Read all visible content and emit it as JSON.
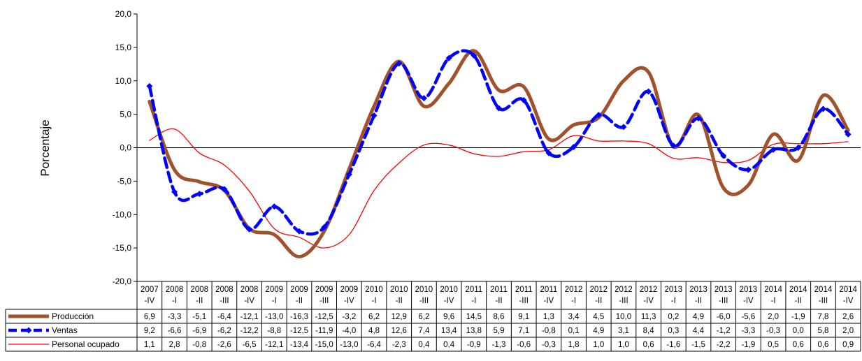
{
  "chart_data": {
    "type": "line",
    "ylabel": "Porcentaje",
    "ylim": [
      -20,
      20
    ],
    "yticks": [
      "20,0",
      "15,0",
      "10,0",
      "5,0",
      "0,0",
      "-5,0",
      "-10,0",
      "-15,0",
      "-20,0"
    ],
    "categories": [
      {
        "year": "2007",
        "q": "-IV"
      },
      {
        "year": "2008",
        "q": "-I"
      },
      {
        "year": "2008",
        "q": "-II"
      },
      {
        "year": "2008",
        "q": "-III"
      },
      {
        "year": "2008",
        "q": "-IV"
      },
      {
        "year": "2009",
        "q": "-I"
      },
      {
        "year": "2009",
        "q": "-II"
      },
      {
        "year": "2009",
        "q": "-III"
      },
      {
        "year": "2009",
        "q": "-IV"
      },
      {
        "year": "2010",
        "q": "-I"
      },
      {
        "year": "2010",
        "q": "-II"
      },
      {
        "year": "2010",
        "q": "-III"
      },
      {
        "year": "2010",
        "q": "-IV"
      },
      {
        "year": "2011",
        "q": "-I"
      },
      {
        "year": "2011",
        "q": "-II"
      },
      {
        "year": "2011",
        "q": "-III"
      },
      {
        "year": "2011",
        "q": "-IV"
      },
      {
        "year": "2012",
        "q": "-I"
      },
      {
        "year": "2012",
        "q": "-II"
      },
      {
        "year": "2012",
        "q": "-III"
      },
      {
        "year": "2012",
        "q": "-IV"
      },
      {
        "year": "2013",
        "q": "-I"
      },
      {
        "year": "2013",
        "q": "-II"
      },
      {
        "year": "2013",
        "q": "-III"
      },
      {
        "year": "2013",
        "q": "-IV"
      },
      {
        "year": "2014",
        "q": "-I"
      },
      {
        "year": "2014",
        "q": "-II"
      },
      {
        "year": "2014",
        "q": "-III"
      },
      {
        "year": "2014",
        "q": "-IV"
      }
    ],
    "series": [
      {
        "name": "Producción",
        "color": "#a0522d",
        "style": "thick-solid",
        "values": [
          6.9,
          -3.3,
          -5.1,
          -6.4,
          -12.1,
          -13.0,
          -16.3,
          -12.5,
          -3.2,
          6.2,
          12.9,
          6.2,
          9.6,
          14.5,
          8.6,
          9.1,
          1.3,
          3.4,
          4.5,
          10.0,
          11.3,
          0.2,
          4.9,
          -6.0,
          -5.6,
          2.0,
          -1.9,
          7.8,
          2.6
        ],
        "labels": [
          "6,9",
          "-3,3",
          "-5,1",
          "-6,4",
          "-12,1",
          "-13,0",
          "-16,3",
          "-12,5",
          "-3,2",
          "6,2",
          "12,9",
          "6,2",
          "9,6",
          "14,5",
          "8,6",
          "9,1",
          "1,3",
          "3,4",
          "4,5",
          "10,0",
          "11,3",
          "0,2",
          "4,9",
          "-6,0",
          "-5,6",
          "2,0",
          "-1,9",
          "7,8",
          "2,6"
        ]
      },
      {
        "name": "Ventas",
        "color": "#0000ff",
        "style": "dashed-diamond",
        "values": [
          9.2,
          -6.6,
          -6.9,
          -6.2,
          -12.2,
          -8.8,
          -12.5,
          -11.9,
          -4.0,
          4.8,
          12.6,
          7.4,
          13.4,
          13.8,
          5.9,
          7.1,
          -0.8,
          0.1,
          4.9,
          3.1,
          8.4,
          0.3,
          4.4,
          -1.2,
          -3.3,
          -0.3,
          0.0,
          5.8,
          2.0
        ],
        "labels": [
          "9,2",
          "-6,6",
          "-6,9",
          "-6,2",
          "-12,2",
          "-8,8",
          "-12,5",
          "-11,9",
          "-4,0",
          "4,8",
          "12,6",
          "7,4",
          "13,4",
          "13,8",
          "5,9",
          "7,1",
          "-0,8",
          "0,1",
          "4,9",
          "3,1",
          "8,4",
          "0,3",
          "4,4",
          "-1,2",
          "-3,3",
          "-0,3",
          "0,0",
          "5,8",
          "2,0"
        ]
      },
      {
        "name": "Personal ocupado",
        "color": "#ff0000",
        "style": "thin-solid",
        "values": [
          1.1,
          2.8,
          -0.8,
          -2.6,
          -6.5,
          -12.1,
          -13.4,
          -15.0,
          -13.0,
          -6.4,
          -2.3,
          0.4,
          0.4,
          -0.9,
          -1.3,
          -0.6,
          -0.3,
          1.8,
          1.0,
          1.0,
          0.6,
          -1.6,
          -1.5,
          -2.2,
          -1.9,
          0.5,
          0.6,
          0.6,
          0.9
        ],
        "labels": [
          "1,1",
          "2,8",
          "-0,8",
          "-2,6",
          "-6,5",
          "-12,1",
          "-13,4",
          "-15,0",
          "-13,0",
          "-6,4",
          "-2,3",
          "0,4",
          "0,4",
          "-0,9",
          "-1,3",
          "-0,6",
          "-0,3",
          "1,8",
          "1,0",
          "1,0",
          "0,6",
          "-1,6",
          "-1,5",
          "-2,2",
          "-1,9",
          "0,5",
          "0,6",
          "0,6",
          "0,9"
        ]
      }
    ],
    "grid": false,
    "legend": "data-table"
  }
}
